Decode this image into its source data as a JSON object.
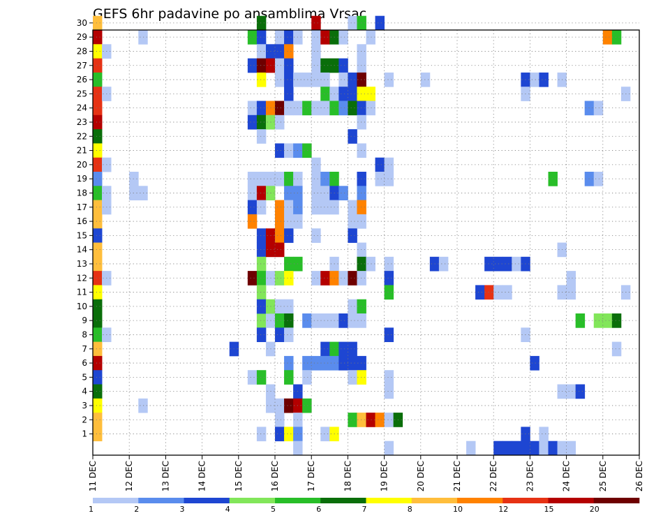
{
  "chart_data": {
    "type": "heatmap",
    "title": "GEFS 6hr padavine po ansamblima Vrsac",
    "x_ticks": [
      "11 DEC",
      "12 DEC",
      "13 DEC",
      "14 DEC",
      "15 DEC",
      "16 DEC",
      "17 DEC",
      "18 DEC",
      "19 DEC",
      "20 DEC",
      "21 DEC",
      "22 DEC",
      "23 DEC",
      "24 DEC",
      "25 DEC",
      "26 DEC"
    ],
    "y_ticks": [
      "1",
      "2",
      "3",
      "4",
      "5",
      "6",
      "7",
      "8",
      "9",
      "10",
      "11",
      "12",
      "13",
      "14",
      "15",
      "16",
      "17",
      "18",
      "19",
      "20",
      "21",
      "22",
      "23",
      "24",
      "25",
      "26",
      "27",
      "28",
      "29",
      "30"
    ],
    "x_start": "11 DEC 00z",
    "time_step_hours": 6,
    "members": 30,
    "grid": true,
    "colorbar": {
      "levels": [
        "1",
        "2",
        "3",
        "4",
        "5",
        "6",
        "7",
        "8",
        "10",
        "12",
        "15",
        "20"
      ],
      "colors": [
        "#b4c8f5",
        "#5a8ced",
        "#1e46d2",
        "#82e65a",
        "#28be28",
        "#0a6e0a",
        "#ffff00",
        "#ffbe3c",
        "#ff8200",
        "#e63214",
        "#b40000",
        "#6e0000"
      ],
      "location": "bottom"
    },
    "cells_note": "Each cell: [member, time step index (6 h steps from 11 DEC 00z), precipitation class index 0-11]",
    "cells": [
      [
        30,
        0,
        7
      ],
      [
        29,
        0,
        10
      ],
      [
        28,
        0,
        6
      ],
      [
        27,
        0,
        9
      ],
      [
        26,
        0,
        4
      ],
      [
        25,
        0,
        9
      ],
      [
        24,
        0,
        9
      ],
      [
        23,
        0,
        10
      ],
      [
        22,
        0,
        5
      ],
      [
        21,
        0,
        6
      ],
      [
        20,
        0,
        9
      ],
      [
        19,
        0,
        1
      ],
      [
        18,
        0,
        4
      ],
      [
        17,
        0,
        7
      ],
      [
        16,
        0,
        7
      ],
      [
        15,
        0,
        2
      ],
      [
        14,
        0,
        7
      ],
      [
        13,
        0,
        7
      ],
      [
        12,
        0,
        9
      ],
      [
        11,
        0,
        6
      ],
      [
        10,
        0,
        5
      ],
      [
        9,
        0,
        5
      ],
      [
        8,
        0,
        4
      ],
      [
        7,
        0,
        7
      ],
      [
        6,
        0,
        10
      ],
      [
        5,
        0,
        2
      ],
      [
        4,
        0,
        5
      ],
      [
        3,
        0,
        6
      ],
      [
        2,
        0,
        7
      ],
      [
        1,
        0,
        7
      ],
      [
        28,
        1,
        0
      ],
      [
        25,
        1,
        0
      ],
      [
        20,
        1,
        0
      ],
      [
        18,
        1,
        0
      ],
      [
        17,
        1,
        0
      ],
      [
        12,
        1,
        0
      ],
      [
        8,
        1,
        0
      ],
      [
        19,
        4,
        0
      ],
      [
        18,
        4,
        0
      ],
      [
        18,
        5,
        0
      ],
      [
        29,
        5,
        0
      ],
      [
        3,
        5,
        0
      ],
      [
        7,
        15,
        2
      ],
      [
        29,
        17,
        4
      ],
      [
        27,
        17,
        2
      ],
      [
        24,
        17,
        0
      ],
      [
        23,
        17,
        2
      ],
      [
        19,
        17,
        0
      ],
      [
        18,
        17,
        0
      ],
      [
        17,
        17,
        2
      ],
      [
        16,
        17,
        8
      ],
      [
        5,
        17,
        0
      ],
      [
        12,
        17,
        11
      ],
      [
        30,
        18,
        5
      ],
      [
        29,
        18,
        2
      ],
      [
        28,
        18,
        0
      ],
      [
        27,
        18,
        11
      ],
      [
        26,
        18,
        6
      ],
      [
        24,
        18,
        2
      ],
      [
        23,
        18,
        5
      ],
      [
        22,
        18,
        0
      ],
      [
        19,
        18,
        0
      ],
      [
        18,
        18,
        10
      ],
      [
        17,
        18,
        0
      ],
      [
        15,
        18,
        2
      ],
      [
        14,
        18,
        2
      ],
      [
        13,
        18,
        3
      ],
      [
        12,
        18,
        4
      ],
      [
        11,
        18,
        3
      ],
      [
        9,
        18,
        3
      ],
      [
        10,
        18,
        2
      ],
      [
        8,
        18,
        2
      ],
      [
        5,
        18,
        4
      ],
      [
        1,
        18,
        0
      ],
      [
        28,
        19,
        2
      ],
      [
        27,
        19,
        10
      ],
      [
        24,
        19,
        8
      ],
      [
        23,
        19,
        3
      ],
      [
        19,
        19,
        0
      ],
      [
        18,
        19,
        3
      ],
      [
        15,
        19,
        10
      ],
      [
        14,
        19,
        10
      ],
      [
        12,
        19,
        0
      ],
      [
        9,
        19,
        0
      ],
      [
        10,
        19,
        3
      ],
      [
        4,
        19,
        0
      ],
      [
        3,
        19,
        0
      ],
      [
        7,
        19,
        0
      ],
      [
        29,
        20,
        0
      ],
      [
        28,
        20,
        2
      ],
      [
        27,
        20,
        0
      ],
      [
        26,
        20,
        0
      ],
      [
        24,
        20,
        11
      ],
      [
        23,
        20,
        0
      ],
      [
        21,
        20,
        2
      ],
      [
        19,
        20,
        0
      ],
      [
        17,
        20,
        8
      ],
      [
        16,
        20,
        8
      ],
      [
        15,
        20,
        8
      ],
      [
        14,
        20,
        10
      ],
      [
        12,
        20,
        3
      ],
      [
        10,
        20,
        0
      ],
      [
        9,
        20,
        4
      ],
      [
        8,
        20,
        2
      ],
      [
        3,
        20,
        0
      ],
      [
        2,
        20,
        0
      ],
      [
        1,
        20,
        2
      ],
      [
        29,
        21,
        2
      ],
      [
        28,
        21,
        8
      ],
      [
        27,
        21,
        2
      ],
      [
        26,
        21,
        2
      ],
      [
        25,
        21,
        2
      ],
      [
        24,
        21,
        0
      ],
      [
        21,
        21,
        0
      ],
      [
        19,
        21,
        4
      ],
      [
        18,
        21,
        1
      ],
      [
        17,
        21,
        0
      ],
      [
        16,
        21,
        0
      ],
      [
        15,
        21,
        2
      ],
      [
        13,
        21,
        4
      ],
      [
        12,
        21,
        6
      ],
      [
        10,
        21,
        0
      ],
      [
        9,
        21,
        5
      ],
      [
        8,
        21,
        0
      ],
      [
        6,
        21,
        1
      ],
      [
        5,
        21,
        4
      ],
      [
        1,
        21,
        6
      ],
      [
        3,
        21,
        11
      ],
      [
        29,
        22,
        0
      ],
      [
        26,
        22,
        0
      ],
      [
        24,
        22,
        0
      ],
      [
        21,
        22,
        1
      ],
      [
        19,
        22,
        0
      ],
      [
        18,
        22,
        1
      ],
      [
        17,
        22,
        1
      ],
      [
        16,
        22,
        0
      ],
      [
        13,
        22,
        4
      ],
      [
        4,
        22,
        2
      ],
      [
        3,
        22,
        10
      ],
      [
        2,
        22,
        0
      ],
      [
        1,
        22,
        1
      ],
      [
        0,
        22,
        0
      ],
      [
        26,
        23,
        0
      ],
      [
        24,
        23,
        4
      ],
      [
        21,
        23,
        4
      ],
      [
        3,
        23,
        4
      ],
      [
        9,
        23,
        1
      ],
      [
        6,
        23,
        1
      ],
      [
        5,
        23,
        0
      ],
      [
        30,
        24,
        10
      ],
      [
        29,
        24,
        0
      ],
      [
        28,
        24,
        0
      ],
      [
        27,
        24,
        0
      ],
      [
        26,
        24,
        0
      ],
      [
        24,
        24,
        0
      ],
      [
        20,
        24,
        0
      ],
      [
        19,
        24,
        0
      ],
      [
        18,
        24,
        0
      ],
      [
        17,
        24,
        0
      ],
      [
        15,
        24,
        0
      ],
      [
        12,
        24,
        0
      ],
      [
        9,
        24,
        0
      ],
      [
        6,
        24,
        1
      ],
      [
        29,
        25,
        10
      ],
      [
        27,
        25,
        5
      ],
      [
        26,
        25,
        0
      ],
      [
        25,
        25,
        4
      ],
      [
        24,
        25,
        0
      ],
      [
        19,
        25,
        1
      ],
      [
        18,
        25,
        0
      ],
      [
        17,
        25,
        0
      ],
      [
        12,
        25,
        10
      ],
      [
        9,
        25,
        0
      ],
      [
        7,
        25,
        2
      ],
      [
        6,
        25,
        1
      ],
      [
        1,
        25,
        0
      ],
      [
        29,
        26,
        5
      ],
      [
        27,
        26,
        5
      ],
      [
        25,
        26,
        0
      ],
      [
        24,
        26,
        4
      ],
      [
        19,
        26,
        4
      ],
      [
        18,
        26,
        2
      ],
      [
        17,
        26,
        0
      ],
      [
        13,
        26,
        0
      ],
      [
        12,
        26,
        8
      ],
      [
        9,
        26,
        0
      ],
      [
        7,
        26,
        4
      ],
      [
        6,
        26,
        1
      ],
      [
        1,
        26,
        6
      ],
      [
        29,
        27,
        0
      ],
      [
        27,
        27,
        2
      ],
      [
        26,
        27,
        0
      ],
      [
        25,
        27,
        2
      ],
      [
        24,
        27,
        1
      ],
      [
        18,
        27,
        1
      ],
      [
        12,
        27,
        0
      ],
      [
        9,
        27,
        2
      ],
      [
        7,
        27,
        2
      ],
      [
        6,
        27,
        2
      ],
      [
        30,
        28,
        0
      ],
      [
        26,
        28,
        2
      ],
      [
        25,
        28,
        2
      ],
      [
        24,
        28,
        5
      ],
      [
        22,
        28,
        2
      ],
      [
        17,
        28,
        0
      ],
      [
        16,
        28,
        0
      ],
      [
        15,
        28,
        2
      ],
      [
        12,
        28,
        11
      ],
      [
        10,
        28,
        0
      ],
      [
        9,
        28,
        0
      ],
      [
        7,
        28,
        2
      ],
      [
        6,
        28,
        2
      ],
      [
        5,
        28,
        0
      ],
      [
        2,
        28,
        4
      ],
      [
        30,
        29,
        4
      ],
      [
        28,
        29,
        0
      ],
      [
        27,
        29,
        0
      ],
      [
        26,
        29,
        11
      ],
      [
        25,
        29,
        6
      ],
      [
        24,
        29,
        2
      ],
      [
        23,
        29,
        0
      ],
      [
        21,
        29,
        0
      ],
      [
        19,
        29,
        2
      ],
      [
        18,
        29,
        1
      ],
      [
        17,
        29,
        8
      ],
      [
        16,
        29,
        0
      ],
      [
        14,
        29,
        0
      ],
      [
        13,
        29,
        5
      ],
      [
        12,
        29,
        0
      ],
      [
        10,
        29,
        4
      ],
      [
        9,
        29,
        0
      ],
      [
        6,
        29,
        2
      ],
      [
        5,
        29,
        6
      ],
      [
        2,
        29,
        7
      ],
      [
        29,
        30,
        0
      ],
      [
        25,
        30,
        6
      ],
      [
        24,
        30,
        0
      ],
      [
        13,
        30,
        0
      ],
      [
        2,
        30,
        10
      ],
      [
        30,
        31,
        2
      ],
      [
        20,
        31,
        2
      ],
      [
        19,
        31,
        0
      ],
      [
        2,
        31,
        8
      ],
      [
        26,
        32,
        0
      ],
      [
        20,
        32,
        0
      ],
      [
        19,
        32,
        0
      ],
      [
        13,
        32,
        0
      ],
      [
        12,
        32,
        2
      ],
      [
        11,
        32,
        4
      ],
      [
        8,
        32,
        2
      ],
      [
        5,
        32,
        0
      ],
      [
        4,
        32,
        0
      ],
      [
        2,
        32,
        0
      ],
      [
        0,
        32,
        0
      ],
      [
        2,
        33,
        5
      ],
      [
        26,
        36,
        0
      ],
      [
        13,
        37,
        2
      ],
      [
        13,
        38,
        0
      ],
      [
        0,
        41,
        0
      ],
      [
        11,
        42,
        2
      ],
      [
        13,
        43,
        2
      ],
      [
        11,
        43,
        9
      ],
      [
        13,
        44,
        2
      ],
      [
        11,
        44,
        0
      ],
      [
        0,
        44,
        2
      ],
      [
        13,
        45,
        2
      ],
      [
        11,
        45,
        0
      ],
      [
        0,
        45,
        2
      ],
      [
        13,
        46,
        0
      ],
      [
        0,
        46,
        2
      ],
      [
        26,
        47,
        2
      ],
      [
        25,
        47,
        0
      ],
      [
        13,
        47,
        2
      ],
      [
        8,
        47,
        0
      ],
      [
        1,
        47,
        2
      ],
      [
        0,
        47,
        2
      ],
      [
        26,
        48,
        0
      ],
      [
        6,
        48,
        2
      ],
      [
        0,
        48,
        2
      ],
      [
        26,
        49,
        2
      ],
      [
        1,
        49,
        0
      ],
      [
        0,
        49,
        0
      ],
      [
        19,
        50,
        4
      ],
      [
        0,
        50,
        2
      ],
      [
        26,
        51,
        0
      ],
      [
        14,
        51,
        0
      ],
      [
        11,
        51,
        0
      ],
      [
        4,
        51,
        0
      ],
      [
        0,
        51,
        0
      ],
      [
        12,
        52,
        0
      ],
      [
        11,
        52,
        0
      ],
      [
        4,
        52,
        0
      ],
      [
        0,
        52,
        0
      ],
      [
        4,
        53,
        2
      ],
      [
        9,
        53,
        4
      ],
      [
        19,
        54,
        1
      ],
      [
        24,
        54,
        1
      ],
      [
        19,
        55,
        0
      ],
      [
        24,
        55,
        0
      ],
      [
        9,
        55,
        3
      ],
      [
        29,
        56,
        8
      ],
      [
        9,
        56,
        3
      ],
      [
        29,
        57,
        4
      ],
      [
        9,
        57,
        5
      ],
      [
        7,
        57,
        0
      ],
      [
        25,
        58,
        0
      ],
      [
        11,
        58,
        0
      ]
    ]
  }
}
